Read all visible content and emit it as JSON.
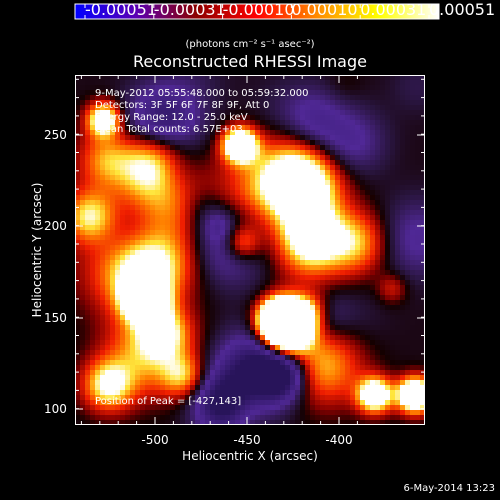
{
  "colorbar": {
    "tick_labels": [
      "-0.00051",
      "-0.00031",
      "-0.00010",
      "0.00010",
      "0.00031",
      "0.00051"
    ],
    "unit": "(photons cm⁻² s⁻¹ asec⁻²)",
    "colors": [
      "#0000ff",
      "#5a00b4",
      "#8c0000",
      "#ff0000",
      "#ff8c00",
      "#ffff00",
      "#ffffff"
    ]
  },
  "title": "Reconstructed RHESSI Image",
  "info_lines": [
    "9-May-2012 05:55:48.000 to 05:59:32.000",
    "Detectors: 3F 5F 6F 7F 8F 9F, Att 0",
    "Energy Range: 12.0 - 25.0 keV",
    "Clean     Total counts: 6.57E+03"
  ],
  "peak_text": "Position of Peak = [-427,143]",
  "x_axis": {
    "title": "Heliocentric X (arcsec)",
    "ticks": [
      "-500",
      "-450",
      "-400"
    ],
    "range": [
      -545,
      -375
    ]
  },
  "y_axis": {
    "title": "Heliocentric Y (arcsec)",
    "ticks": [
      "100",
      "150",
      "200",
      "250"
    ],
    "range": [
      95,
      280
    ]
  },
  "timestamp": "6-May-2014 13:23",
  "style": {
    "background": "#000000",
    "text_color": "#ffffff"
  }
}
